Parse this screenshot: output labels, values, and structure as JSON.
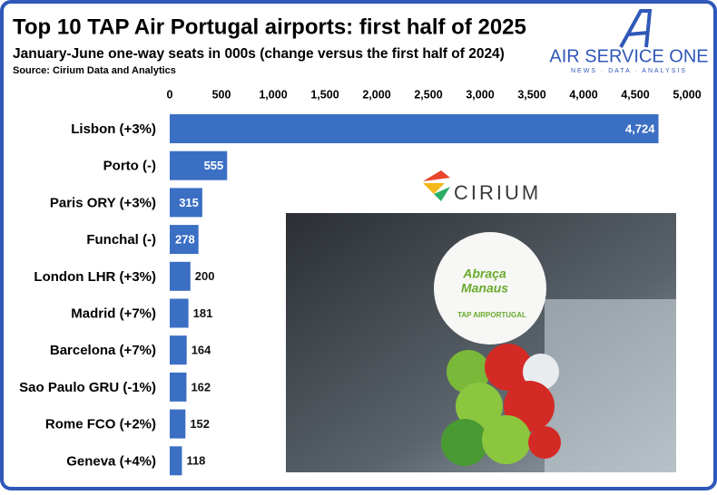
{
  "chart_data": {
    "type": "hbar",
    "title": "Top 10 TAP Air Portugal airports: first half of 2025",
    "subtitle": "January-June one-way seats in 000s (change versus the first half of 2024)",
    "source": "Source: Cirium Data and Analytics",
    "categories": [
      "Lisbon (+3%)",
      "Porto (-)",
      "Paris ORY (+3%)",
      "Funchal (-)",
      "London LHR (+3%)",
      "Madrid (+7%)",
      "Barcelona (+7%)",
      "Sao Paulo GRU (-1%)",
      "Rome FCO (+2%)",
      "Geneva (+4%)"
    ],
    "values": [
      4724,
      555,
      315,
      278,
      200,
      181,
      164,
      162,
      152,
      118
    ],
    "value_labels": [
      "4,724",
      "555",
      "315",
      "278",
      "200",
      "181",
      "164",
      "162",
      "152",
      "118"
    ],
    "color": "#3b6fc4",
    "xlim": [
      0,
      5000
    ],
    "xticks": [
      0,
      500,
      {
        "value": 1000,
        "label": "1,000"
      },
      {
        "value": 1500,
        "label": "1,500"
      },
      {
        "value": 2000,
        "label": "2,000"
      },
      {
        "value": 2500,
        "label": "2,500"
      },
      {
        "value": 3000,
        "label": "3,000"
      },
      {
        "value": 3500,
        "label": "3,500"
      },
      {
        "value": 4000,
        "label": "4,000"
      },
      {
        "value": 4500,
        "label": "4,500"
      },
      {
        "value": 5000,
        "label": "5,000"
      }
    ]
  },
  "logos": {
    "air_service_one": "AIR SERVICE ONE",
    "tagline": "NEWS  ·  DATA  ·  ANALYSIS",
    "cirium": "CIRIUM"
  },
  "photo": {
    "balloon_line1": "Abraça",
    "balloon_line2": "Manaus",
    "balloon_brand": "TAP AIRPORTUGAL"
  }
}
